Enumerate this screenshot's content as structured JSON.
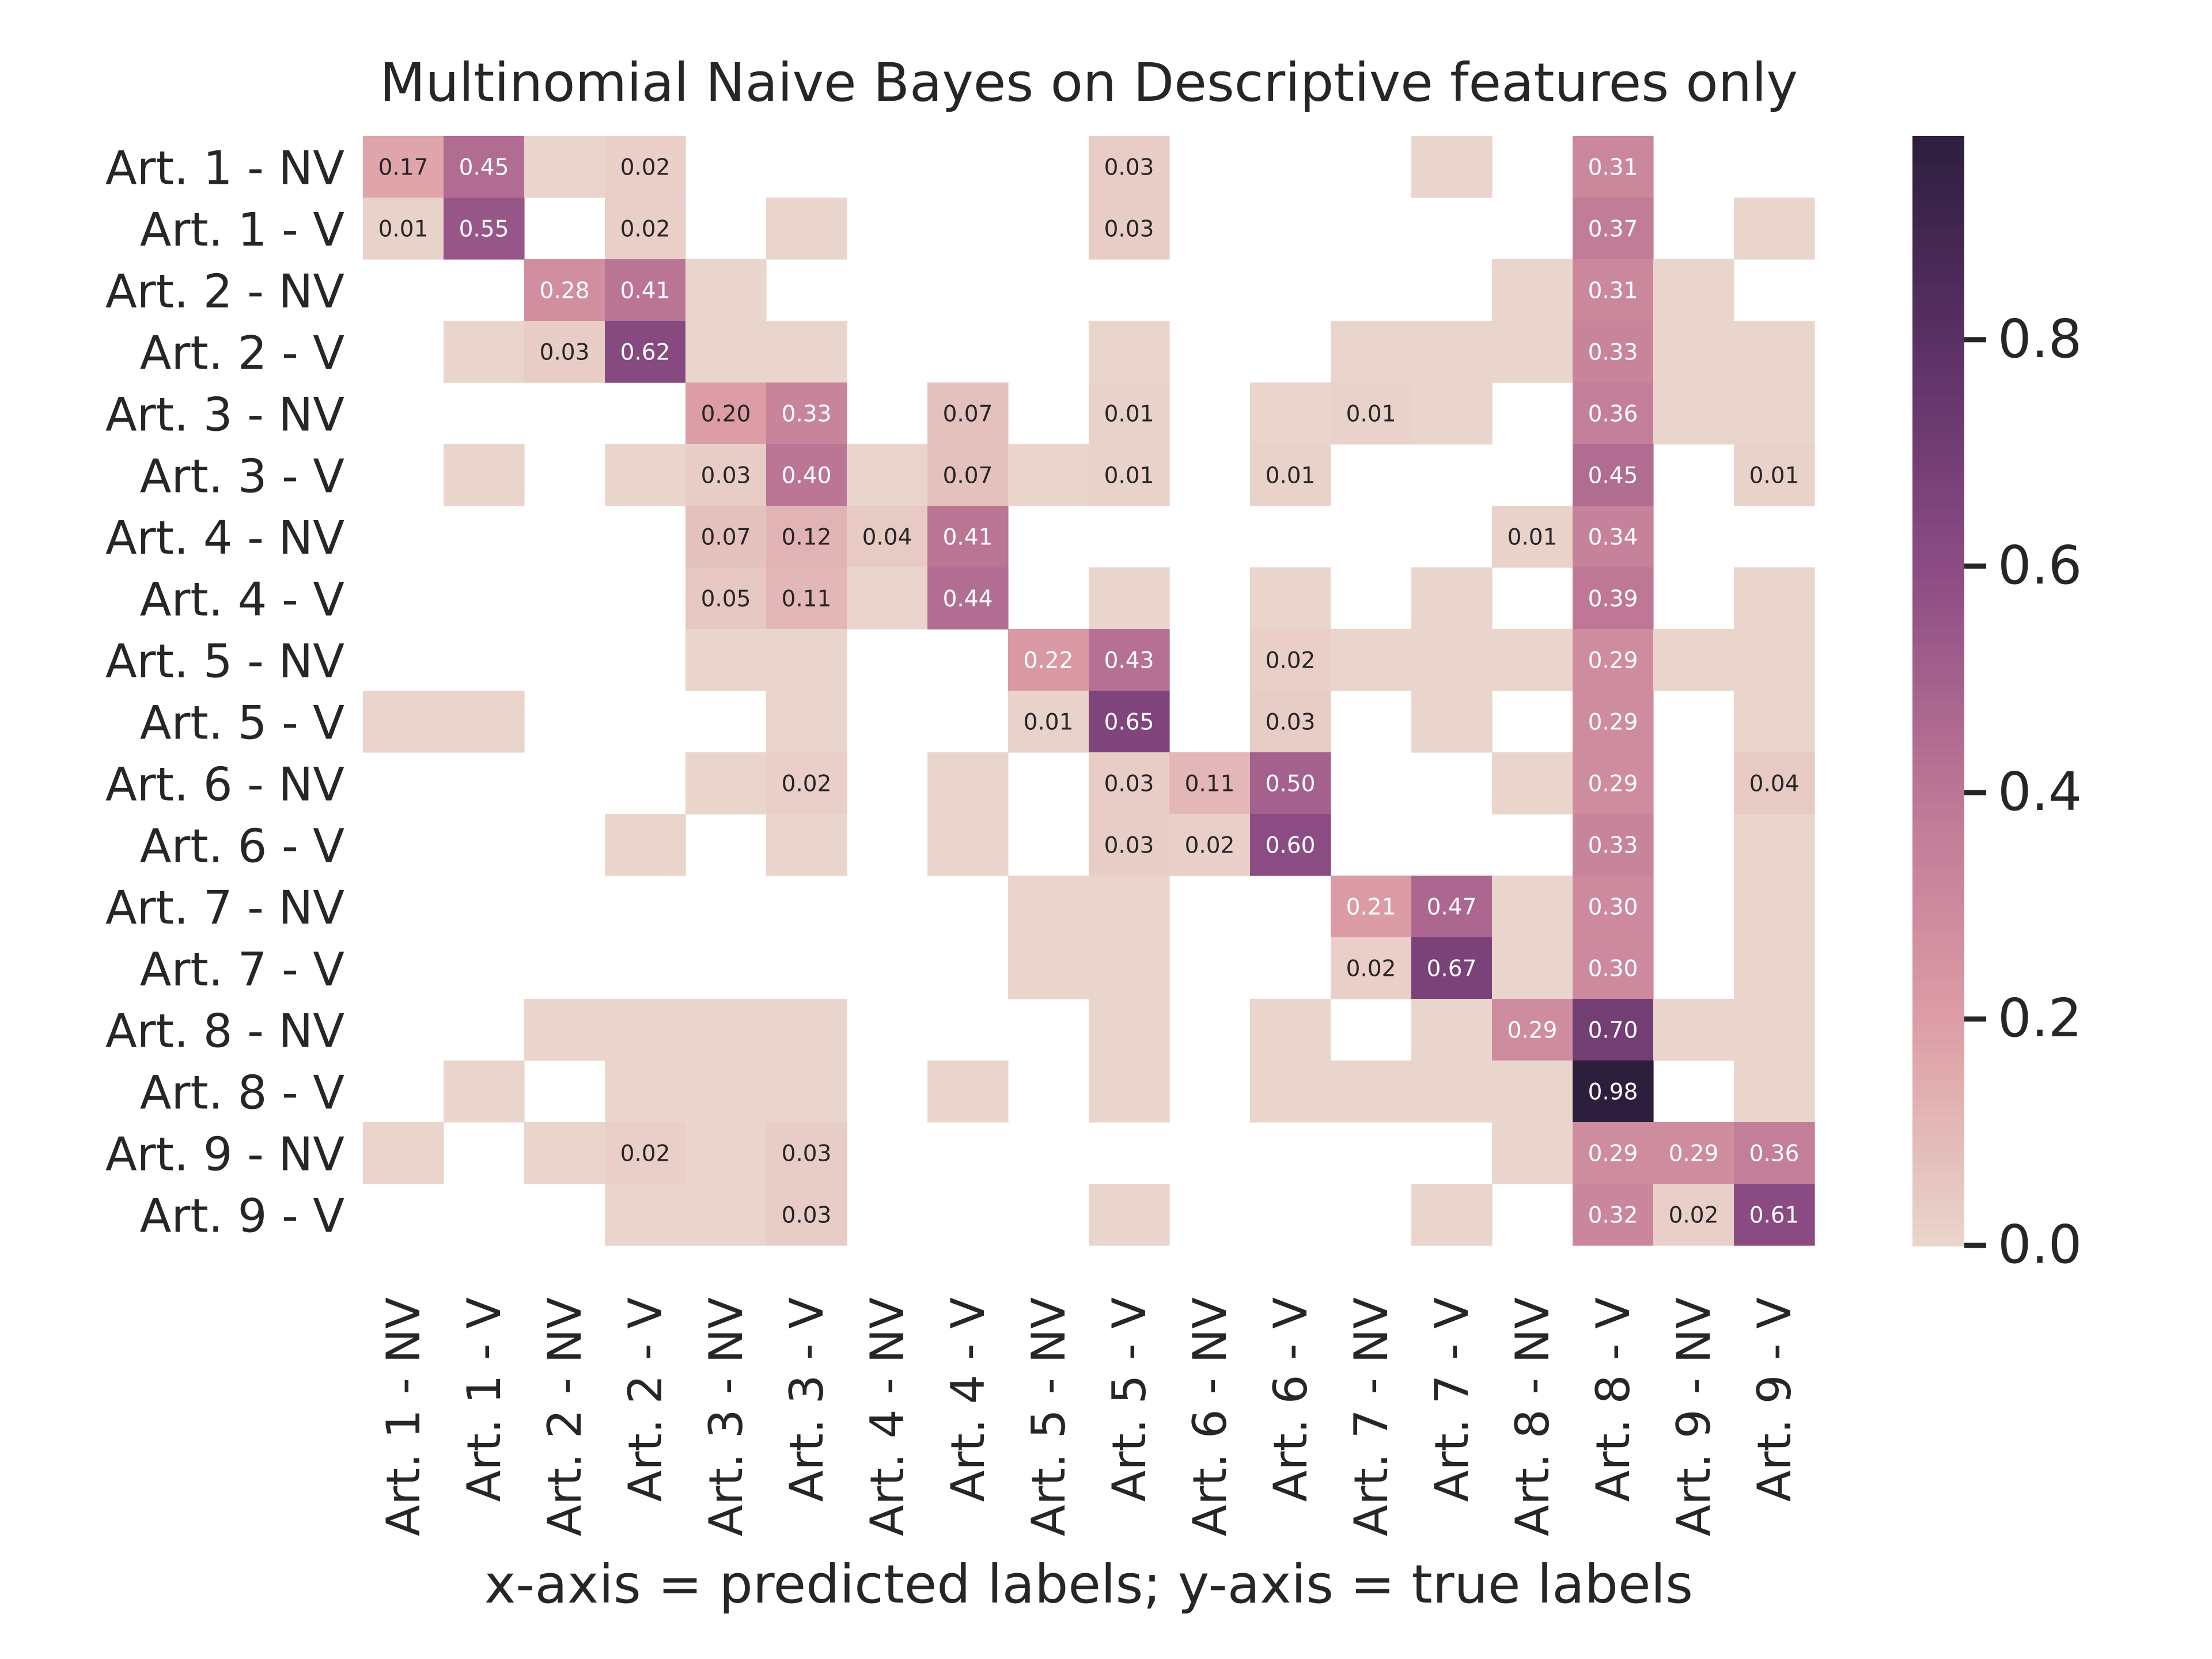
{
  "chart_data": {
    "type": "heatmap",
    "title": "Multinomial Naive Bayes on Descriptive features only",
    "xlabel": "x-axis = predicted labels; y-axis = true labels",
    "ylabel": "",
    "x_categories": [
      "Art. 1 - NV",
      "Art. 1 - V",
      "Art. 2 - NV",
      "Art. 2 - V",
      "Art. 3 - NV",
      "Art. 3 - V",
      "Art. 4 - NV",
      "Art. 4 - V",
      "Art. 5 - NV",
      "Art. 5 - V",
      "Art. 6 - NV",
      "Art. 6 - V",
      "Art. 7 - NV",
      "Art. 7 - V",
      "Art. 8 - NV",
      "Art. 8 - V",
      "Art. 9 - NV",
      "Art. 9 - V"
    ],
    "y_categories": [
      "Art. 1 - NV",
      "Art. 1 - V",
      "Art. 2 - NV",
      "Art. 2 - V",
      "Art. 3 - NV",
      "Art. 3 - V",
      "Art. 4 - NV",
      "Art. 4 - V",
      "Art. 5 - NV",
      "Art. 5 - V",
      "Art. 6 - NV",
      "Art. 6 - V",
      "Art. 7 - NV",
      "Art. 7 - V",
      "Art. 8 - NV",
      "Art. 8 - V",
      "Art. 9 - NV",
      "Art. 9 - V"
    ],
    "matrix": [
      [
        0.17,
        0.45,
        0.0,
        0.02,
        null,
        null,
        null,
        null,
        null,
        0.03,
        null,
        null,
        null,
        0.0,
        null,
        0.31,
        null,
        null
      ],
      [
        0.01,
        0.55,
        null,
        0.02,
        null,
        0.0,
        null,
        null,
        null,
        0.03,
        null,
        null,
        null,
        null,
        null,
        0.37,
        null,
        0.0
      ],
      [
        null,
        null,
        0.28,
        0.41,
        0.0,
        null,
        null,
        null,
        null,
        null,
        null,
        null,
        null,
        null,
        0.0,
        0.31,
        0.0,
        null
      ],
      [
        null,
        0.0,
        0.03,
        0.62,
        0.0,
        0.0,
        null,
        null,
        null,
        0.0,
        null,
        null,
        0.0,
        0.0,
        0.0,
        0.33,
        0.0,
        0.0
      ],
      [
        null,
        null,
        null,
        null,
        0.2,
        0.33,
        null,
        0.07,
        null,
        0.01,
        null,
        0.0,
        0.01,
        0.0,
        null,
        0.36,
        0.0,
        0.0
      ],
      [
        null,
        0.0,
        null,
        0.0,
        0.03,
        0.4,
        0.0,
        0.07,
        0.0,
        0.01,
        null,
        0.01,
        null,
        null,
        null,
        0.45,
        null,
        0.01
      ],
      [
        null,
        null,
        null,
        null,
        0.07,
        0.12,
        0.04,
        0.41,
        null,
        null,
        null,
        null,
        null,
        null,
        0.01,
        0.34,
        null,
        null
      ],
      [
        null,
        null,
        null,
        null,
        0.05,
        0.11,
        0.0,
        0.44,
        null,
        0.0,
        null,
        0.0,
        null,
        0.0,
        null,
        0.39,
        null,
        0.0
      ],
      [
        null,
        null,
        null,
        null,
        0.0,
        0.0,
        null,
        null,
        0.22,
        0.43,
        null,
        0.02,
        0.0,
        0.0,
        0.0,
        0.29,
        0.0,
        0.0
      ],
      [
        0.0,
        0.0,
        null,
        null,
        null,
        0.0,
        null,
        null,
        0.01,
        0.65,
        null,
        0.03,
        null,
        0.0,
        null,
        0.29,
        null,
        0.0
      ],
      [
        null,
        null,
        null,
        null,
        0.0,
        0.02,
        null,
        0.0,
        null,
        0.03,
        0.11,
        0.5,
        null,
        null,
        0.0,
        0.29,
        null,
        0.04
      ],
      [
        null,
        null,
        null,
        0.0,
        null,
        0.0,
        null,
        0.0,
        null,
        0.03,
        0.02,
        0.6,
        null,
        null,
        null,
        0.33,
        null,
        0.0
      ],
      [
        null,
        null,
        null,
        null,
        null,
        null,
        null,
        null,
        0.0,
        0.0,
        null,
        null,
        0.21,
        0.47,
        0.0,
        0.3,
        null,
        0.0
      ],
      [
        null,
        null,
        null,
        null,
        null,
        null,
        null,
        null,
        0.0,
        0.0,
        null,
        null,
        0.02,
        0.67,
        0.0,
        0.3,
        null,
        0.0
      ],
      [
        null,
        null,
        0.0,
        0.0,
        0.0,
        0.0,
        null,
        null,
        null,
        0.0,
        null,
        0.0,
        null,
        0.0,
        0.29,
        0.7,
        0.0,
        0.0
      ],
      [
        null,
        0.0,
        null,
        0.0,
        0.0,
        0.0,
        null,
        0.0,
        null,
        0.0,
        null,
        0.0,
        0.0,
        0.0,
        0.0,
        0.98,
        null,
        0.0
      ],
      [
        0.0,
        null,
        0.0,
        0.02,
        0.0,
        0.03,
        null,
        null,
        null,
        null,
        null,
        null,
        null,
        null,
        0.0,
        0.29,
        0.29,
        0.36
      ],
      [
        null,
        null,
        null,
        0.0,
        0.0,
        0.03,
        null,
        null,
        null,
        0.0,
        null,
        null,
        null,
        0.0,
        null,
        0.32,
        0.02,
        0.61
      ]
    ],
    "value_format": "2 decimals; cells that round to 0.00 carry no printed annotation; null cells are blank",
    "colorbar": {
      "min": 0.0,
      "max": 0.98,
      "ticks": [
        0.0,
        0.2,
        0.4,
        0.6,
        0.8
      ],
      "tick_labels": [
        "0.0",
        "0.2",
        "0.4",
        "0.6",
        "0.8"
      ],
      "colormap": "cubehelix light (pink to dark purple)",
      "color_low": "#ead5cc",
      "color_high": "#2d1e3e"
    },
    "grid": false,
    "legend": "colorbar-right"
  }
}
